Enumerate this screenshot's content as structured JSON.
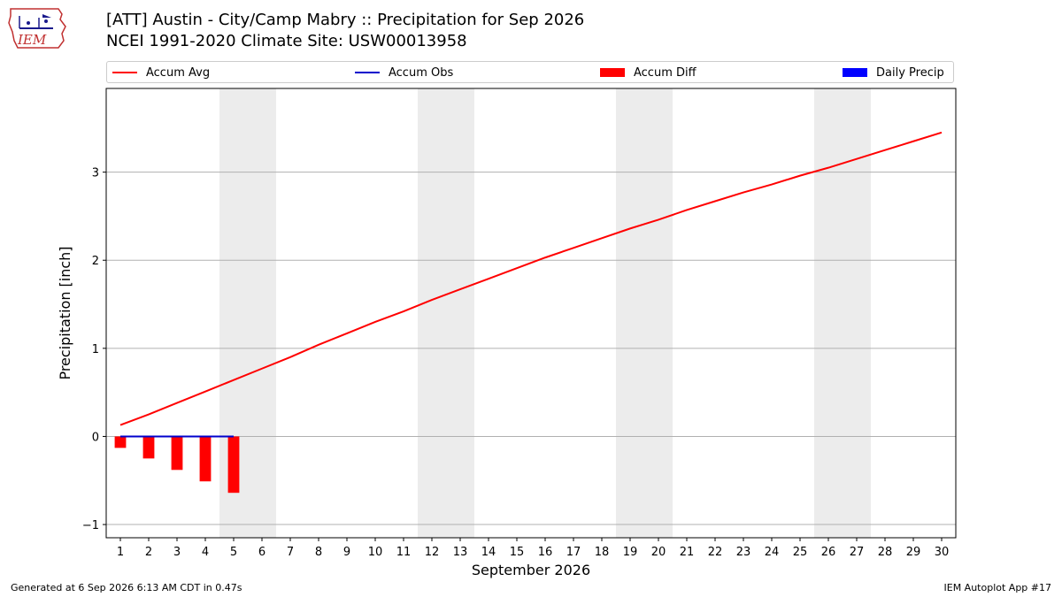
{
  "title_line1": "[ATT] Austin - City/Camp Mabry :: Precipitation for Sep 2026",
  "title_line2": "NCEI 1991-2020 Climate Site: USW00013958",
  "logo_text": "IEM",
  "footer_left": "Generated at 6 Sep 2026 6:13 AM CDT in 0.47s",
  "footer_right": "IEM Autoplot App #17",
  "colors": {
    "avg": "#ff0000",
    "obs": "#0000cc",
    "diff": "#ff0000",
    "daily": "#0000ff",
    "weekend": "#ececec",
    "grid": "#b0b0b0"
  },
  "chart_data": {
    "type": "line",
    "xlabel": "September 2026",
    "ylabel": "Precipitation [inch]",
    "xlim": [
      0.5,
      30.5
    ],
    "ylim": [
      -1.15,
      3.95
    ],
    "yticks": [
      -1,
      0,
      1,
      2,
      3
    ],
    "ytick_labels": [
      "−1",
      "0",
      "1",
      "2",
      "3"
    ],
    "x": [
      1,
      2,
      3,
      4,
      5,
      6,
      7,
      8,
      9,
      10,
      11,
      12,
      13,
      14,
      15,
      16,
      17,
      18,
      19,
      20,
      21,
      22,
      23,
      24,
      25,
      26,
      27,
      28,
      29,
      30
    ],
    "weekend_days": [
      5,
      6,
      12,
      13,
      19,
      20,
      26,
      27
    ],
    "grid": "horizontal",
    "legend_position": "top",
    "legend": [
      {
        "label": "Accum Avg",
        "kind": "line",
        "color": "#ff0000"
      },
      {
        "label": "Accum Obs",
        "kind": "line",
        "color": "#0000cc"
      },
      {
        "label": "Accum Diff",
        "kind": "bar",
        "color": "#ff0000"
      },
      {
        "label": "Daily Precip",
        "kind": "bar",
        "color": "#0000ff"
      }
    ],
    "series": [
      {
        "name": "Accum Avg",
        "type": "line",
        "x": [
          1,
          2,
          3,
          4,
          5,
          6,
          7,
          8,
          9,
          10,
          11,
          12,
          13,
          14,
          15,
          16,
          17,
          18,
          19,
          20,
          21,
          22,
          23,
          24,
          25,
          26,
          27,
          28,
          29,
          30
        ],
        "values": [
          0.13,
          0.25,
          0.38,
          0.51,
          0.64,
          0.77,
          0.9,
          1.04,
          1.17,
          1.3,
          1.42,
          1.55,
          1.67,
          1.79,
          1.91,
          2.03,
          2.14,
          2.25,
          2.36,
          2.46,
          2.57,
          2.67,
          2.77,
          2.86,
          2.96,
          3.05,
          3.15,
          3.25,
          3.35,
          3.45
        ]
      },
      {
        "name": "Accum Obs",
        "type": "line",
        "x": [
          1,
          2,
          3,
          4,
          5
        ],
        "values": [
          0,
          0,
          0,
          0,
          0
        ]
      },
      {
        "name": "Accum Diff",
        "type": "bar",
        "x": [
          1,
          2,
          3,
          4,
          5
        ],
        "values": [
          -0.13,
          -0.25,
          -0.38,
          -0.51,
          -0.64
        ]
      },
      {
        "name": "Daily Precip",
        "type": "bar",
        "x": [
          1,
          2,
          3,
          4,
          5
        ],
        "values": [
          0,
          0,
          0,
          0,
          0
        ]
      }
    ]
  }
}
